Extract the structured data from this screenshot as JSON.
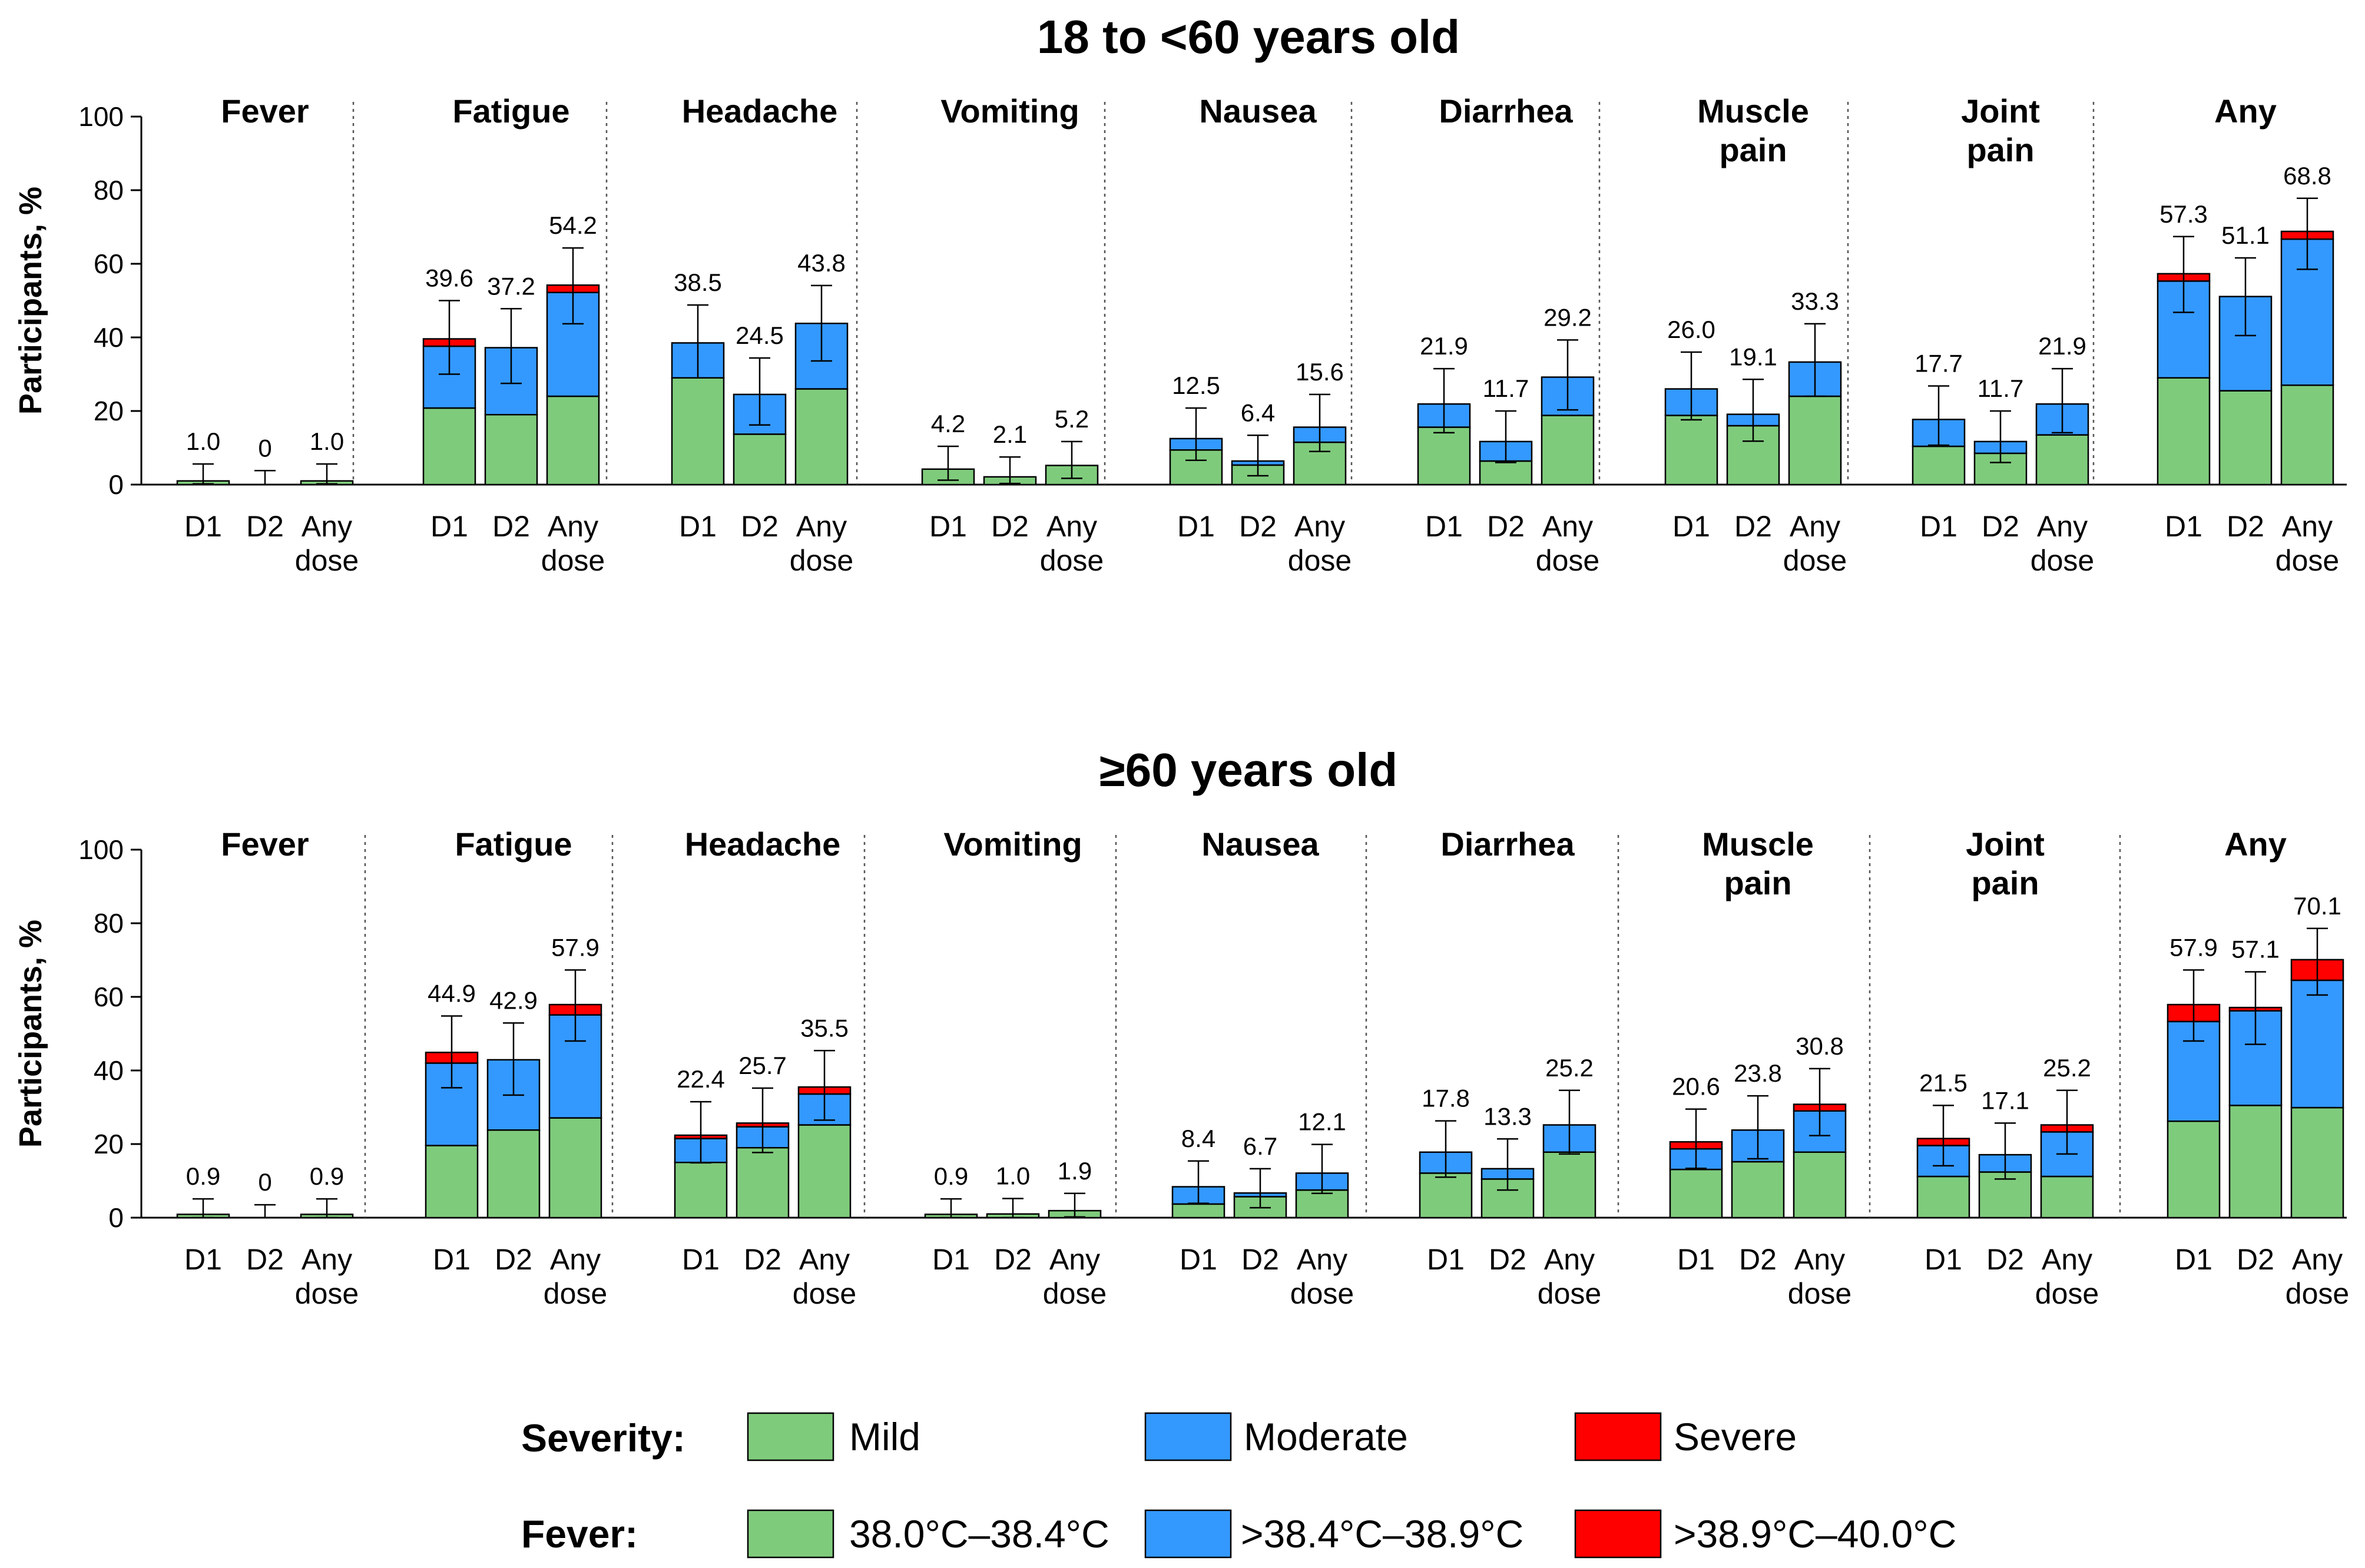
{
  "chart_data": [
    {
      "type": "bar",
      "stacked": true,
      "title": "18 to <60 years old",
      "ylabel": "Participants, %",
      "ylim": [
        0,
        100
      ],
      "yticks": [
        0,
        20,
        40,
        60,
        80,
        100
      ],
      "x_labels": [
        "D1",
        "D2",
        "Any dose"
      ],
      "groups": [
        {
          "name": "Fever",
          "bars": [
            {
              "x": "D1",
              "total": "1.0",
              "mild": 1.0,
              "moderate": 0,
              "severe": 0,
              "ci": [
                0.2,
                5.6
              ]
            },
            {
              "x": "D2",
              "total": "0",
              "mild": 0,
              "moderate": 0,
              "severe": 0,
              "ci": [
                0,
                3.8
              ]
            },
            {
              "x": "Any dose",
              "total": "1.0",
              "mild": 1.0,
              "moderate": 0,
              "severe": 0,
              "ci": [
                0.2,
                5.6
              ]
            }
          ]
        },
        {
          "name": "Fatigue",
          "bars": [
            {
              "x": "D1",
              "total": "39.6",
              "mild": 20.8,
              "moderate": 16.8,
              "severe": 2.0,
              "ci": [
                30.0,
                50.0
              ]
            },
            {
              "x": "D2",
              "total": "37.2",
              "mild": 19.0,
              "moderate": 18.2,
              "severe": 0,
              "ci": [
                27.5,
                47.8
              ]
            },
            {
              "x": "Any dose",
              "total": "54.2",
              "mild": 24.0,
              "moderate": 28.2,
              "severe": 2.0,
              "ci": [
                43.7,
                64.3
              ]
            }
          ]
        },
        {
          "name": "Headache",
          "bars": [
            {
              "x": "D1",
              "total": "38.5",
              "mild": 29.0,
              "moderate": 9.5,
              "severe": 0,
              "ci": [
                29.0,
                48.8
              ]
            },
            {
              "x": "D2",
              "total": "24.5",
              "mild": 13.7,
              "moderate": 10.8,
              "severe": 0,
              "ci": [
                16.2,
                34.4
              ]
            },
            {
              "x": "Any dose",
              "total": "43.8",
              "mild": 26.0,
              "moderate": 17.8,
              "severe": 0,
              "ci": [
                33.6,
                54.1
              ]
            }
          ]
        },
        {
          "name": "Vomiting",
          "bars": [
            {
              "x": "D1",
              "total": "4.2",
              "mild": 4.2,
              "moderate": 0,
              "severe": 0,
              "ci": [
                1.2,
                10.4
              ]
            },
            {
              "x": "D2",
              "total": "2.1",
              "mild": 2.1,
              "moderate": 0,
              "severe": 0,
              "ci": [
                0.3,
                7.5
              ]
            },
            {
              "x": "Any dose",
              "total": "5.2",
              "mild": 5.2,
              "moderate": 0,
              "severe": 0,
              "ci": [
                1.7,
                11.7
              ]
            }
          ]
        },
        {
          "name": "Nausea",
          "bars": [
            {
              "x": "D1",
              "total": "12.5",
              "mild": 9.4,
              "moderate": 3.1,
              "severe": 0,
              "ci": [
                6.6,
                20.8
              ]
            },
            {
              "x": "D2",
              "total": "6.4",
              "mild": 5.3,
              "moderate": 1.1,
              "severe": 0,
              "ci": [
                2.4,
                13.4
              ]
            },
            {
              "x": "Any dose",
              "total": "15.6",
              "mild": 11.5,
              "moderate": 4.1,
              "severe": 0,
              "ci": [
                9.0,
                24.5
              ]
            }
          ]
        },
        {
          "name": "Diarrhea",
          "bars": [
            {
              "x": "D1",
              "total": "21.9",
              "mild": 15.6,
              "moderate": 6.3,
              "severe": 0,
              "ci": [
                14.1,
                31.5
              ]
            },
            {
              "x": "D2",
              "total": "11.7",
              "mild": 6.4,
              "moderate": 5.3,
              "severe": 0,
              "ci": [
                6.0,
                20.0
              ]
            },
            {
              "x": "Any dose",
              "total": "29.2",
              "mild": 18.8,
              "moderate": 10.4,
              "severe": 0,
              "ci": [
                20.3,
                39.3
              ]
            }
          ]
        },
        {
          "name": "Muscle pain",
          "bars": [
            {
              "x": "D1",
              "total": "26.0",
              "mild": 18.8,
              "moderate": 7.2,
              "severe": 0,
              "ci": [
                17.6,
                36.0
              ]
            },
            {
              "x": "D2",
              "total": "19.1",
              "mild": 16.0,
              "moderate": 3.1,
              "severe": 0,
              "ci": [
                11.8,
                28.6
              ]
            },
            {
              "x": "Any dose",
              "total": "33.3",
              "mild": 24.0,
              "moderate": 9.3,
              "severe": 0,
              "ci": [
                24.0,
                43.7
              ]
            }
          ]
        },
        {
          "name": "Joint pain",
          "bars": [
            {
              "x": "D1",
              "total": "17.7",
              "mild": 10.4,
              "moderate": 7.3,
              "severe": 0,
              "ci": [
                10.7,
                26.8
              ]
            },
            {
              "x": "D2",
              "total": "11.7",
              "mild": 8.5,
              "moderate": 3.2,
              "severe": 0,
              "ci": [
                6.0,
                20.0
              ]
            },
            {
              "x": "Any dose",
              "total": "21.9",
              "mild": 13.5,
              "moderate": 8.4,
              "severe": 0,
              "ci": [
                14.1,
                31.5
              ]
            }
          ]
        },
        {
          "name": "Any",
          "bars": [
            {
              "x": "D1",
              "total": "57.3",
              "mild": 29.0,
              "moderate": 26.3,
              "severe": 2.0,
              "ci": [
                46.8,
                67.4
              ]
            },
            {
              "x": "D2",
              "total": "51.1",
              "mild": 25.5,
              "moderate": 25.6,
              "severe": 0,
              "ci": [
                40.5,
                61.6
              ]
            },
            {
              "x": "Any dose",
              "total": "68.8",
              "mild": 27.0,
              "moderate": 39.7,
              "severe": 2.1,
              "ci": [
                58.5,
                77.8
              ]
            }
          ]
        }
      ]
    },
    {
      "type": "bar",
      "stacked": true,
      "title": "≥60 years old",
      "ylabel": "Participants, %",
      "ylim": [
        0,
        100
      ],
      "yticks": [
        0,
        20,
        40,
        60,
        80,
        100
      ],
      "x_labels": [
        "D1",
        "D2",
        "Any dose"
      ],
      "groups": [
        {
          "name": "Fever",
          "bars": [
            {
              "x": "D1",
              "total": "0.9",
              "mild": 0.9,
              "moderate": 0,
              "severe": 0,
              "ci": [
                0.0,
                5.1
              ]
            },
            {
              "x": "D2",
              "total": "0",
              "mild": 0,
              "moderate": 0,
              "severe": 0,
              "ci": [
                0,
                3.5
              ]
            },
            {
              "x": "Any dose",
              "total": "0.9",
              "mild": 0.9,
              "moderate": 0,
              "severe": 0,
              "ci": [
                0.0,
                5.1
              ]
            }
          ]
        },
        {
          "name": "Fatigue",
          "bars": [
            {
              "x": "D1",
              "total": "44.9",
              "mild": 19.6,
              "moderate": 22.4,
              "severe": 2.9,
              "ci": [
                35.3,
                54.8
              ]
            },
            {
              "x": "D2",
              "total": "42.9",
              "mild": 23.8,
              "moderate": 19.1,
              "severe": 0,
              "ci": [
                33.3,
                52.9
              ]
            },
            {
              "x": "Any dose",
              "total": "57.9",
              "mild": 27.1,
              "moderate": 28.0,
              "severe": 2.8,
              "ci": [
                48.0,
                67.3
              ]
            }
          ]
        },
        {
          "name": "Headache",
          "bars": [
            {
              "x": "D1",
              "total": "22.4",
              "mild": 15.0,
              "moderate": 6.5,
              "severe": 0.9,
              "ci": [
                14.9,
                31.5
              ]
            },
            {
              "x": "D2",
              "total": "25.7",
              "mild": 19.0,
              "moderate": 5.7,
              "severe": 1.0,
              "ci": [
                17.7,
                35.2
              ]
            },
            {
              "x": "Any dose",
              "total": "35.5",
              "mild": 25.2,
              "moderate": 8.4,
              "severe": 1.9,
              "ci": [
                26.5,
                45.4
              ]
            }
          ]
        },
        {
          "name": "Vomiting",
          "bars": [
            {
              "x": "D1",
              "total": "0.9",
              "mild": 0.9,
              "moderate": 0,
              "severe": 0,
              "ci": [
                0.0,
                5.1
              ]
            },
            {
              "x": "D2",
              "total": "1.0",
              "mild": 1.0,
              "moderate": 0,
              "severe": 0,
              "ci": [
                0.0,
                5.2
              ]
            },
            {
              "x": "Any dose",
              "total": "1.9",
              "mild": 1.9,
              "moderate": 0,
              "severe": 0,
              "ci": [
                0.2,
                6.6
              ]
            }
          ]
        },
        {
          "name": "Nausea",
          "bars": [
            {
              "x": "D1",
              "total": "8.4",
              "mild": 3.7,
              "moderate": 4.7,
              "severe": 0,
              "ci": [
                3.9,
                15.4
              ]
            },
            {
              "x": "D2",
              "total": "6.7",
              "mild": 5.7,
              "moderate": 1.0,
              "severe": 0,
              "ci": [
                2.7,
                13.3
              ]
            },
            {
              "x": "Any dose",
              "total": "12.1",
              "mild": 7.5,
              "moderate": 4.6,
              "severe": 0,
              "ci": [
                6.6,
                19.9
              ]
            }
          ]
        },
        {
          "name": "Diarrhea",
          "bars": [
            {
              "x": "D1",
              "total": "17.8",
              "mild": 12.1,
              "moderate": 5.7,
              "severe": 0,
              "ci": [
                11.0,
                26.3
              ]
            },
            {
              "x": "D2",
              "total": "13.3",
              "mild": 10.5,
              "moderate": 2.8,
              "severe": 0,
              "ci": [
                7.5,
                21.4
              ]
            },
            {
              "x": "Any dose",
              "total": "25.2",
              "mild": 17.8,
              "moderate": 7.4,
              "severe": 0,
              "ci": [
                17.3,
                34.6
              ]
            }
          ]
        },
        {
          "name": "Muscle pain",
          "bars": [
            {
              "x": "D1",
              "total": "20.6",
              "mild": 13.1,
              "moderate": 5.6,
              "severe": 1.9,
              "ci": [
                13.4,
                29.5
              ]
            },
            {
              "x": "D2",
              "total": "23.8",
              "mild": 15.2,
              "moderate": 8.6,
              "severe": 0,
              "ci": [
                16.0,
                33.1
              ]
            },
            {
              "x": "Any dose",
              "total": "30.8",
              "mild": 17.8,
              "moderate": 11.2,
              "severe": 1.8,
              "ci": [
                22.3,
                40.5
              ]
            }
          ]
        },
        {
          "name": "Joint pain",
          "bars": [
            {
              "x": "D1",
              "total": "21.5",
              "mild": 11.2,
              "moderate": 8.4,
              "severe": 1.9,
              "ci": [
                14.1,
                30.5
              ]
            },
            {
              "x": "D2",
              "total": "17.1",
              "mild": 12.4,
              "moderate": 4.7,
              "severe": 0,
              "ci": [
                10.5,
                25.7
              ]
            },
            {
              "x": "Any dose",
              "total": "25.2",
              "mild": 11.2,
              "moderate": 12.1,
              "severe": 1.9,
              "ci": [
                17.3,
                34.6
              ]
            }
          ]
        },
        {
          "name": "Any",
          "bars": [
            {
              "x": "D1",
              "total": "57.9",
              "mild": 26.2,
              "moderate": 27.1,
              "severe": 4.6,
              "ci": [
                48.0,
                67.3
              ]
            },
            {
              "x": "D2",
              "total": "57.1",
              "mild": 30.5,
              "moderate": 25.7,
              "severe": 0.9,
              "ci": [
                47.1,
                66.8
              ]
            },
            {
              "x": "Any dose",
              "total": "70.1",
              "mild": 29.9,
              "moderate": 34.6,
              "severe": 5.6,
              "ci": [
                60.5,
                78.6
              ]
            }
          ]
        }
      ]
    }
  ],
  "legend": {
    "severity_label": "Severity:",
    "fever_label": "Fever:",
    "severity_items": [
      "Mild",
      "Moderate",
      "Severe"
    ],
    "fever_items": [
      "38.0°C–38.4°C",
      ">38.4°C–38.9°C",
      ">38.9°C–40.0°C"
    ]
  },
  "colors": {
    "mild": "#7fcb7c",
    "moderate": "#3399ff",
    "severe": "#ff0000"
  }
}
